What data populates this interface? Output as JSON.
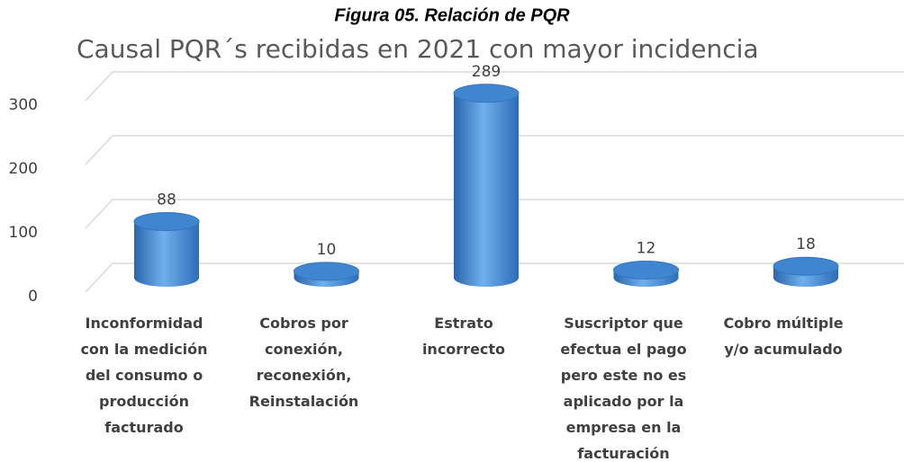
{
  "figure_caption": "Figura 05. Relación de PQR",
  "chart_data": {
    "type": "bar3d",
    "title": "Causal PQR´s recibidas en 2021 con mayor incidencia",
    "categories": [
      "Inconformidad con la medición del consumo o producción facturado",
      "Cobros por conexión, reconexión, Reinstalación",
      "Estrato incorrecto",
      "Suscriptor que efectua el pago pero este no es aplicado por la empresa en la facturación",
      "Cobro múltiple y/o acumulado"
    ],
    "values": [
      88,
      10,
      289,
      12,
      18
    ],
    "color": "#4a8fd8",
    "ylim": [
      0,
      300
    ],
    "yticks": [
      0,
      100,
      200,
      300
    ],
    "grid": true
  }
}
